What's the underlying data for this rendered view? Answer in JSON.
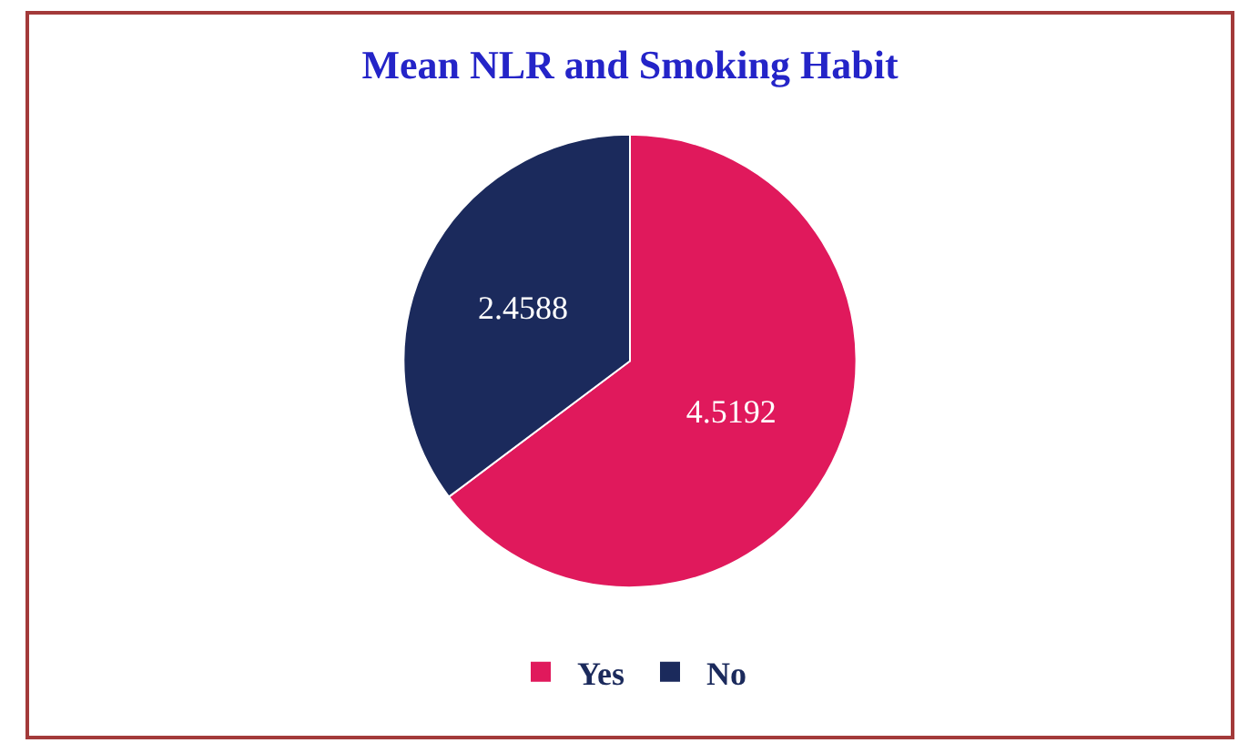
{
  "chart_data": {
    "type": "pie",
    "title": "Mean NLR and Smoking Habit",
    "categories": [
      "Yes",
      "No"
    ],
    "values": [
      4.5192,
      2.4588
    ],
    "colors": [
      "#e0195c",
      "#1b2a5c"
    ],
    "data_labels": true,
    "legend": "bottom"
  }
}
